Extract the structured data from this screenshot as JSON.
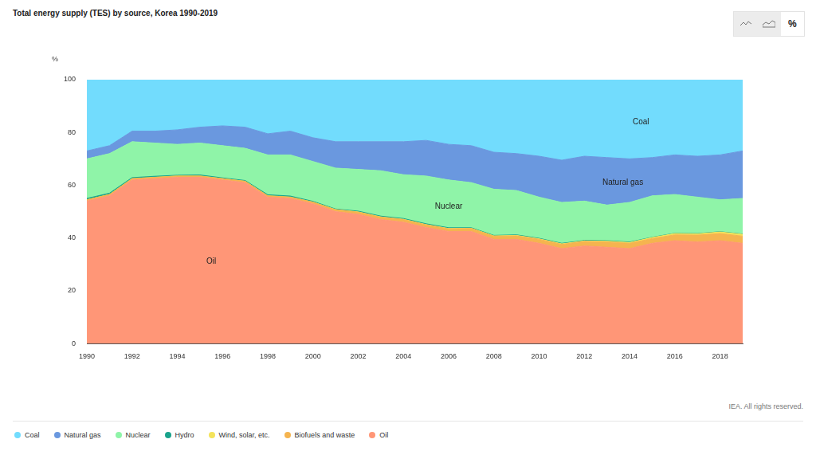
{
  "chart_data": {
    "type": "area",
    "title": "Total energy supply (TES) by source, Korea 1990-2019",
    "y_label": "%",
    "button_label": "%",
    "source": "IEA. All rights reserved.",
    "x": [
      1990,
      1991,
      1992,
      1993,
      1994,
      1995,
      1996,
      1997,
      1998,
      1999,
      2000,
      2001,
      2002,
      2003,
      2004,
      2005,
      2006,
      2007,
      2008,
      2009,
      2010,
      2011,
      2012,
      2013,
      2014,
      2015,
      2016,
      2017,
      2018,
      2019
    ],
    "series": [
      {
        "name": "Coal",
        "color": "#72dcfd",
        "values": [
          27,
          25,
          19.5,
          19.5,
          19,
          18,
          17.5,
          18,
          20.5,
          19.5,
          22,
          23.5,
          23.5,
          23.5,
          23.5,
          23,
          24.5,
          25,
          27.5,
          28,
          29,
          30.5,
          29,
          29.5,
          30,
          29.5,
          28.5,
          29,
          28.5,
          27
        ]
      },
      {
        "name": "Natural gas",
        "color": "#6a98df",
        "values": [
          3,
          3,
          4,
          4.5,
          5.5,
          6,
          7.5,
          8,
          8,
          9,
          9,
          10,
          10.5,
          11,
          12.5,
          13.5,
          13.5,
          14,
          14,
          14,
          15.5,
          16,
          17,
          18,
          16.5,
          14.5,
          15,
          15.5,
          17,
          18
        ]
      },
      {
        "name": "Nuclear",
        "color": "#8ff4a8",
        "values": [
          15,
          15,
          13.6,
          12.6,
          11.7,
          12.1,
          12.2,
          12.2,
          15.1,
          15.6,
          15.1,
          15.5,
          15.8,
          17.2,
          16.6,
          18.1,
          18.1,
          17.1,
          17.5,
          16.8,
          15.6,
          15.5,
          14.9,
          13.5,
          15,
          15.7,
          14.7,
          13.8,
          12.1,
          13.5
        ]
      },
      {
        "name": "Hydro",
        "color": "#1aa38c",
        "values": [
          0.5,
          0.5,
          0.4,
          0.4,
          0.3,
          0.4,
          0.3,
          0.3,
          0.4,
          0.4,
          0.3,
          0.2,
          0.3,
          0.3,
          0.3,
          0.3,
          0.3,
          0.2,
          0.2,
          0.2,
          0.2,
          0.2,
          0.2,
          0.2,
          0.2,
          0.1,
          0.1,
          0.1,
          0.1,
          0.1
        ]
      },
      {
        "name": "Wind, solar, etc.",
        "color": "#f4e35b",
        "values": [
          0,
          0,
          0,
          0,
          0,
          0,
          0,
          0,
          0,
          0,
          0,
          0.1,
          0.1,
          0.1,
          0.1,
          0.1,
          0.1,
          0.1,
          0.1,
          0.2,
          0.2,
          0.2,
          0.2,
          0.3,
          0.3,
          0.4,
          0.5,
          0.5,
          0.6,
          0.7
        ]
      },
      {
        "name": "Biofuels and waste",
        "color": "#f5b44f",
        "values": [
          0.5,
          0.5,
          0.5,
          0.5,
          0.5,
          0.5,
          0.5,
          0.5,
          0.5,
          0.5,
          0.6,
          0.7,
          0.8,
          0.9,
          1,
          1,
          1,
          1.1,
          1.2,
          1.3,
          1.5,
          1.6,
          1.7,
          2,
          2,
          1.8,
          2.2,
          2.6,
          2.7,
          2.7
        ]
      },
      {
        "name": "Oil",
        "color": "#ff9677",
        "values": [
          54,
          56,
          62,
          62.5,
          63,
          63,
          62,
          61,
          55.5,
          55,
          53,
          50,
          49,
          47,
          46,
          44,
          42.5,
          42.5,
          39.5,
          39.5,
          38,
          36,
          37,
          36.5,
          36,
          38,
          39,
          38.5,
          39,
          38
        ]
      }
    ],
    "xlim": [
      1990,
      2019
    ],
    "xticks": [
      1990,
      1992,
      1994,
      1996,
      1998,
      2000,
      2002,
      2004,
      2006,
      2008,
      2010,
      2012,
      2014,
      2016,
      2018
    ],
    "ylim": [
      0,
      100
    ],
    "yticks": [
      0,
      20,
      40,
      60,
      80,
      100
    ],
    "stacked": true,
    "grid": true,
    "legend": "bottom",
    "annotations": [
      {
        "text": "Coal",
        "x": 2014.5,
        "y": 84
      },
      {
        "text": "Natural gas",
        "x": 2013.7,
        "y": 61
      },
      {
        "text": "Nuclear",
        "x": 2006,
        "y": 52
      },
      {
        "text": "Oil",
        "x": 1995.5,
        "y": 31
      }
    ]
  }
}
